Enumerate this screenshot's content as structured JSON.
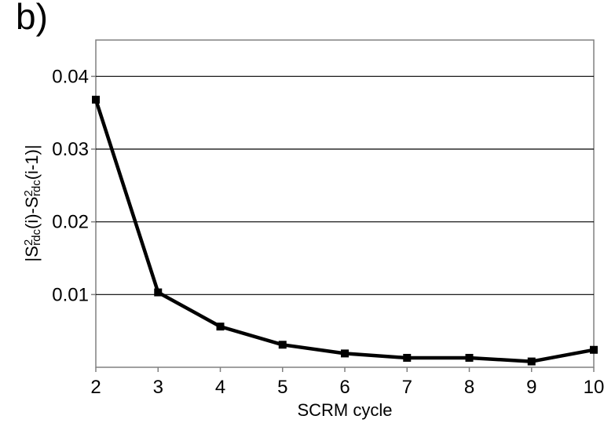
{
  "panel_label": "b)",
  "chart_data": {
    "type": "line",
    "title": "",
    "xlabel": "SCRM cycle",
    "ylabel": {
      "parts": [
        {
          "text": "|S",
          "style": "normal"
        },
        {
          "text": "2",
          "style": "sup"
        },
        {
          "text": "rdc",
          "style": "sub"
        },
        {
          "text": "(i)-S",
          "style": "normal"
        },
        {
          "text": "2",
          "style": "sup"
        },
        {
          "text": "rdc",
          "style": "sub"
        },
        {
          "text": "(i-1)|",
          "style": "normal"
        }
      ]
    },
    "x": [
      2,
      3,
      4,
      5,
      6,
      7,
      8,
      9,
      10
    ],
    "series": [
      {
        "values": [
          0.0368,
          0.0103,
          0.0056,
          0.0031,
          0.0019,
          0.0013,
          0.0013,
          0.0008,
          0.0024
        ],
        "color": "#000000",
        "marker": "square"
      }
    ],
    "xlim": [
      2,
      10
    ],
    "ylim": [
      0,
      0.045
    ],
    "yticks": [
      0.01,
      0.02,
      0.03,
      0.04
    ],
    "ytick_labels": [
      "0.01",
      "0.02",
      "0.03",
      "0.04"
    ],
    "xticks": [
      2,
      3,
      4,
      5,
      6,
      7,
      8,
      9,
      10
    ],
    "xtick_labels": [
      "2",
      "3",
      "4",
      "5",
      "6",
      "7",
      "8",
      "9",
      "10"
    ],
    "grid": "horizontal",
    "legend": "none"
  }
}
